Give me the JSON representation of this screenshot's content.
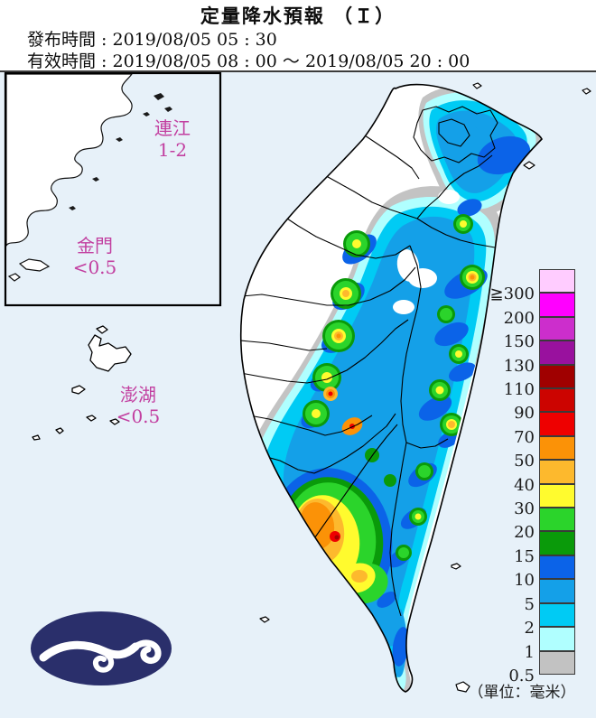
{
  "header": {
    "title": "定量降水預報 （Ｉ）",
    "issued_line": "發布時間 : 2019/08/05 05 : 30",
    "valid_line": "有效時間 : 2019/08/05 08 : 00 ～ 2019/08/05 20 : 00"
  },
  "map": {
    "region_labels": {
      "lienchiang": {
        "name": "連江",
        "value": "1-2"
      },
      "kinmen": {
        "name": "金門",
        "value": "<0.5"
      },
      "penghu": {
        "name": "澎湖",
        "value": "<0.5"
      }
    },
    "sea_color": "#e7f1f9",
    "land_color": "#ffffff",
    "logo_color": "#2a2f6b",
    "label_color": "#c23fa0"
  },
  "legend": {
    "unit": "（單位：毫米）",
    "entries": [
      {
        "label": "≧300",
        "color": "#ffccff"
      },
      {
        "label": "200",
        "color": "#ff00ff"
      },
      {
        "label": "150",
        "color": "#cc2ecc"
      },
      {
        "label": "130",
        "color": "#99119e"
      },
      {
        "label": "110",
        "color": "#a00000"
      },
      {
        "label": "90",
        "color": "#cc0400"
      },
      {
        "label": "70",
        "color": "#ee0000"
      },
      {
        "label": "50",
        "color": "#fb9207"
      },
      {
        "label": "40",
        "color": "#fdb92d"
      },
      {
        "label": "30",
        "color": "#fffb2e"
      },
      {
        "label": "20",
        "color": "#2bd42b"
      },
      {
        "label": "15",
        "color": "#0a9a0a"
      },
      {
        "label": "10",
        "color": "#0b63e8"
      },
      {
        "label": "5",
        "color": "#14a0e8"
      },
      {
        "label": "2",
        "color": "#00cbf4"
      },
      {
        "label": "1",
        "color": "#b0ffff"
      },
      {
        "label": "0.5",
        "color": "#c2c2c2"
      }
    ]
  }
}
